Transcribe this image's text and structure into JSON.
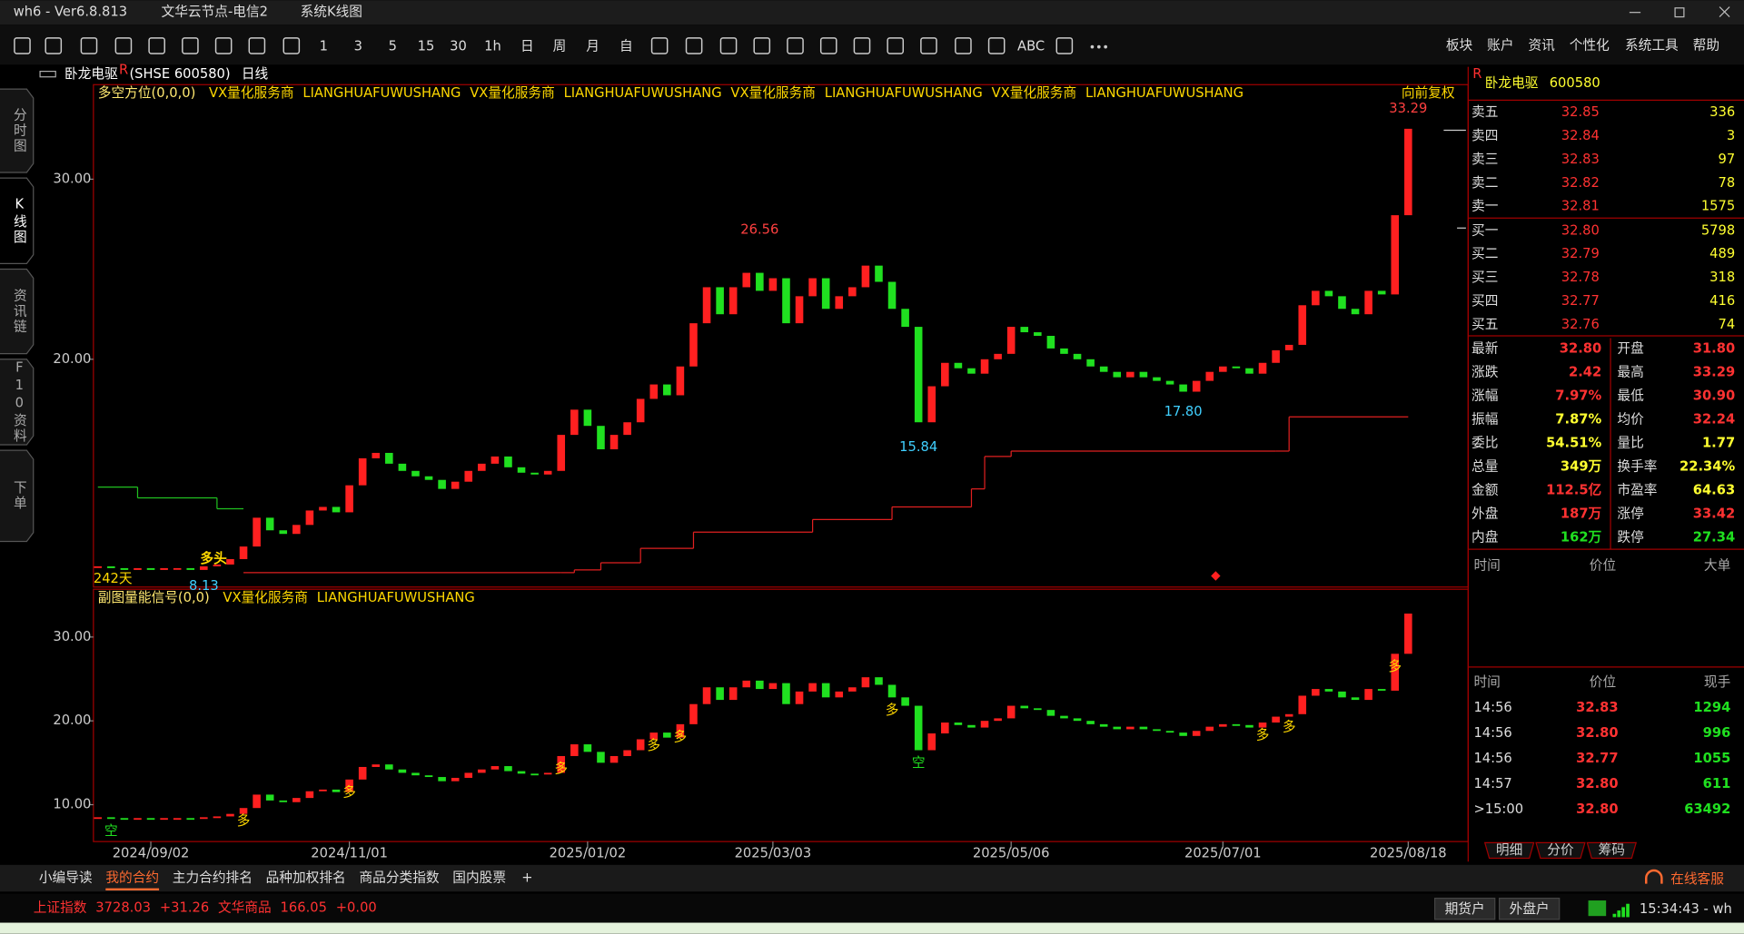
{
  "title_bar": {
    "app": "wh6  -  Ver6.8.813",
    "node": "文华云节点-电信2",
    "view": "系统K线图"
  },
  "toolbar": {
    "periods": [
      "1",
      "3",
      "5",
      "15",
      "30",
      "1h",
      "日",
      "周",
      "月",
      "自"
    ],
    "abc": "ABC",
    "menu": [
      "板块",
      "账户",
      "资讯",
      "个性化",
      "系统工具",
      "帮助"
    ]
  },
  "side_tabs": [
    "分时图",
    "K线图",
    "资讯链",
    "F10资料",
    "下单"
  ],
  "chart_header": {
    "name": "卧龙电驱",
    "flag": "R",
    "code": "(SHSE 600580)",
    "period": "日线"
  },
  "chart_data": [
    {
      "type": "candlestick",
      "indicator": "多空方位(0,0,0)",
      "tags": [
        "VX量化服务商",
        "LIANGHUAFUWUSHANG",
        "VX量化服务商",
        "LIANGHUAFUWUSHANG",
        "VX量化服务商",
        "LIANGHUAFUWUSHANG",
        "VX量化服务商",
        "LIANGHUAFUWUSHANG"
      ],
      "adjust": "向前复权",
      "up_color": "#ff2020",
      "down_color": "#20e020",
      "values": [
        8.5,
        8.4,
        8.3,
        8.4,
        8.3,
        8.4,
        8.4,
        8.3,
        8.5,
        8.6,
        8.9,
        9.6,
        11.2,
        10.5,
        10.3,
        10.8,
        11.6,
        11.8,
        11.5,
        13.0,
        14.5,
        14.8,
        14.2,
        13.8,
        13.5,
        13.3,
        12.8,
        13.2,
        13.8,
        14.2,
        14.6,
        14.0,
        13.7,
        13.6,
        13.8,
        15.8,
        17.2,
        16.3,
        15.0,
        15.8,
        16.5,
        17.8,
        18.6,
        18.0,
        19.6,
        22.0,
        24.0,
        22.5,
        24.0,
        24.8,
        23.8,
        24.5,
        22.0,
        23.5,
        24.5,
        22.8,
        23.5,
        24.0,
        25.2,
        24.3,
        22.8,
        21.8,
        16.5,
        18.5,
        19.8,
        19.5,
        19.2,
        20.0,
        20.3,
        21.8,
        21.5,
        21.3,
        20.6,
        20.3,
        20.0,
        19.6,
        19.3,
        19.0,
        19.3,
        19.0,
        18.8,
        18.6,
        18.2,
        18.8,
        19.3,
        19.6,
        19.5,
        19.2,
        19.8,
        20.5,
        20.8,
        23.0,
        23.8,
        23.5,
        22.8,
        22.5,
        23.8,
        23.6,
        28.0,
        32.8
      ],
      "ylim": [
        7.35,
        35.25
      ],
      "yticks": [
        {
          "value": 30,
          "label": "30.00"
        },
        {
          "value": 20,
          "label": "20.00"
        }
      ],
      "xticks": [
        {
          "value": 4,
          "label": "2024/09/02"
        },
        {
          "value": 19,
          "label": "2024/11/01"
        },
        {
          "value": 37,
          "label": "2025/01/02"
        },
        {
          "value": 51,
          "label": "2025/03/03"
        },
        {
          "value": 69,
          "label": "2025/05/06"
        },
        {
          "value": 85,
          "label": "2025/07/01"
        },
        {
          "value": 99,
          "label": "2025/08/18"
        }
      ],
      "lines": [
        {
          "color": "#20c020",
          "x": [
            0,
            3,
            9,
            11
          ],
          "values": [
            12.9,
            12.3,
            11.7,
            11.7
          ]
        },
        {
          "color": "#e02020",
          "x": [
            11,
            35,
            36,
            38,
            41,
            45,
            54,
            60,
            66,
            67,
            69,
            89,
            90,
            99
          ],
          "values": [
            8.15,
            8.15,
            8.3,
            8.7,
            9.5,
            10.4,
            11.1,
            11.8,
            12.8,
            14.6,
            14.9,
            14.9,
            16.8,
            16.8
          ]
        }
      ],
      "annotations": [
        {
          "index": 50,
          "value": 26.56,
          "label": "26.56",
          "color": "#ff4040",
          "pos": "above"
        },
        {
          "index": 62,
          "value": 15.84,
          "label": "15.84",
          "color": "#40d0ff",
          "pos": "below"
        },
        {
          "index": 82,
          "value": 17.8,
          "label": "17.80",
          "color": "#40d0ff",
          "pos": "below"
        },
        {
          "index": 8,
          "value": 8.13,
          "label": "8.13",
          "color": "#40d0ff",
          "pos": "below"
        },
        {
          "index": 99,
          "value": 33.29,
          "label": "33.29",
          "color": "#ff4040",
          "pos": "above"
        }
      ],
      "notes": {
        "days": "242天",
        "signal": "多头"
      }
    },
    {
      "type": "candlestick",
      "indicator": "副图量能信号(0,0)",
      "tags": [
        "VX量化服务商",
        "LIANGHUAFUWUSHANG"
      ],
      "up_color": "#ff2020",
      "down_color": "#20e020",
      "values": [
        8.5,
        8.4,
        8.3,
        8.4,
        8.3,
        8.4,
        8.4,
        8.3,
        8.5,
        8.6,
        8.9,
        9.6,
        11.2,
        10.5,
        10.3,
        10.8,
        11.6,
        11.8,
        11.5,
        13.0,
        14.5,
        14.8,
        14.2,
        13.8,
        13.5,
        13.3,
        12.8,
        13.2,
        13.8,
        14.2,
        14.6,
        14.0,
        13.7,
        13.6,
        13.8,
        15.8,
        17.2,
        16.3,
        15.0,
        15.8,
        16.5,
        17.8,
        18.6,
        18.0,
        19.6,
        22.0,
        24.0,
        22.5,
        24.0,
        24.8,
        23.8,
        24.5,
        22.0,
        23.5,
        24.5,
        22.8,
        23.5,
        24.0,
        25.2,
        24.3,
        22.8,
        21.8,
        16.5,
        18.5,
        19.8,
        19.5,
        19.2,
        20.0,
        20.3,
        21.8,
        21.5,
        21.3,
        20.6,
        20.3,
        20.0,
        19.6,
        19.3,
        19.0,
        19.3,
        19.0,
        18.8,
        18.6,
        18.2,
        18.8,
        19.3,
        19.6,
        19.5,
        19.2,
        19.8,
        20.5,
        20.8,
        23.0,
        23.8,
        23.5,
        22.8,
        22.5,
        23.8,
        23.6,
        28.0,
        32.8
      ],
      "ylim": [
        5.6,
        35.7
      ],
      "yticks": [
        {
          "value": 30,
          "label": "30.00"
        },
        {
          "value": 20,
          "label": "20.00"
        },
        {
          "value": 10,
          "label": "10.00"
        }
      ],
      "signals": [
        {
          "index": 1,
          "label": "空",
          "color": "#20e020"
        },
        {
          "index": 11,
          "label": "多",
          "color": "#ffd800"
        },
        {
          "index": 19,
          "label": "多",
          "color": "#ffd800"
        },
        {
          "index": 35,
          "label": "多",
          "color": "#ffd800"
        },
        {
          "index": 42,
          "label": "多",
          "color": "#ffd800"
        },
        {
          "index": 44,
          "label": "多",
          "color": "#ffd800"
        },
        {
          "index": 60,
          "label": "多",
          "color": "#ffd800"
        },
        {
          "index": 62,
          "label": "空",
          "color": "#20e020"
        },
        {
          "index": 88,
          "label": "多",
          "color": "#ffd800"
        },
        {
          "index": 90,
          "label": "多",
          "color": "#ffd800"
        },
        {
          "index": 98,
          "label": "多",
          "color": "#ffd800"
        }
      ]
    }
  ],
  "quote_panel": {
    "flag": "R",
    "name": "卧龙电驱",
    "code": "600580",
    "book": [
      {
        "label": "卖五",
        "price": "32.85",
        "volume": "336"
      },
      {
        "label": "卖四",
        "price": "32.84",
        "volume": "3"
      },
      {
        "label": "卖三",
        "price": "32.83",
        "volume": "97"
      },
      {
        "label": "卖二",
        "price": "32.82",
        "volume": "78"
      },
      {
        "label": "卖一",
        "price": "32.81",
        "volume": "1575"
      },
      {
        "label": "买一",
        "price": "32.80",
        "volume": "5798"
      },
      {
        "label": "买二",
        "price": "32.79",
        "volume": "489"
      },
      {
        "label": "买三",
        "price": "32.78",
        "volume": "318"
      },
      {
        "label": "买四",
        "price": "32.77",
        "volume": "416"
      },
      {
        "label": "买五",
        "price": "32.76",
        "volume": "74"
      }
    ],
    "stats": [
      {
        "label": "最新",
        "value": "32.80",
        "color": "#ff3232",
        "label2": "开盘",
        "value2": "31.80",
        "color2": "#ff3232"
      },
      {
        "label": "涨跌",
        "value": "2.42",
        "color": "#ff3232",
        "label2": "最高",
        "value2": "33.29",
        "color2": "#ff3232"
      },
      {
        "label": "涨幅",
        "value": "7.97%",
        "color": "#ff3232",
        "label2": "最低",
        "value2": "30.90",
        "color2": "#ff3232"
      },
      {
        "label": "振幅",
        "value": "7.87%",
        "color": "#ffff30",
        "label2": "均价",
        "value2": "32.24",
        "color2": "#ff3232"
      },
      {
        "label": "委比",
        "value": "54.51%",
        "color": "#ffff30",
        "label2": "量比",
        "value2": "1.77",
        "color2": "#ffff30"
      },
      {
        "label": "总量",
        "value": "349万",
        "color": "#ffff30",
        "label2": "换手率",
        "value2": "22.34%",
        "color2": "#ffff30"
      },
      {
        "label": "金额",
        "value": "112.5亿",
        "color": "#ff3232",
        "label2": "市盈率",
        "value2": "64.63",
        "color2": "#ffff30"
      },
      {
        "label": "外盘",
        "value": "187万",
        "color": "#ff3232",
        "label2": "涨停",
        "value2": "33.42",
        "color2": "#ff3232"
      },
      {
        "label": "内盘",
        "value": "162万",
        "color": "#20e020",
        "label2": "跌停",
        "value2": "27.34",
        "color2": "#20e020"
      }
    ],
    "big_header": [
      "时间",
      "价位",
      "大单"
    ],
    "tick_header": [
      "时间",
      "价位",
      "现手"
    ],
    "ticks": [
      [
        "14:56",
        "32.83",
        "1294"
      ],
      [
        "14:56",
        "32.80",
        "996"
      ],
      [
        "14:56",
        "32.77",
        "1055"
      ],
      [
        "14:57",
        "32.80",
        "611"
      ],
      [
        ">15:00",
        "32.80",
        "63492"
      ]
    ],
    "tabs": [
      "明细",
      "分价",
      "筹码"
    ]
  },
  "bottom_tabs": {
    "items": [
      "小编导读",
      "我的合约",
      "主力合约排名",
      "品种加权排名",
      "商品分类指数",
      "国内股票"
    ],
    "active": 1,
    "add": "+",
    "service": "在线客服"
  },
  "status_bar": {
    "index_name": "上证指数",
    "index_value": "3728.03",
    "index_change": "+31.26",
    "goods_name": "文华商品",
    "goods_value": "166.05",
    "goods_change": "+0.00",
    "accounts": [
      "期货户",
      "外盘户"
    ],
    "clock": "15:34:43 - wh"
  }
}
